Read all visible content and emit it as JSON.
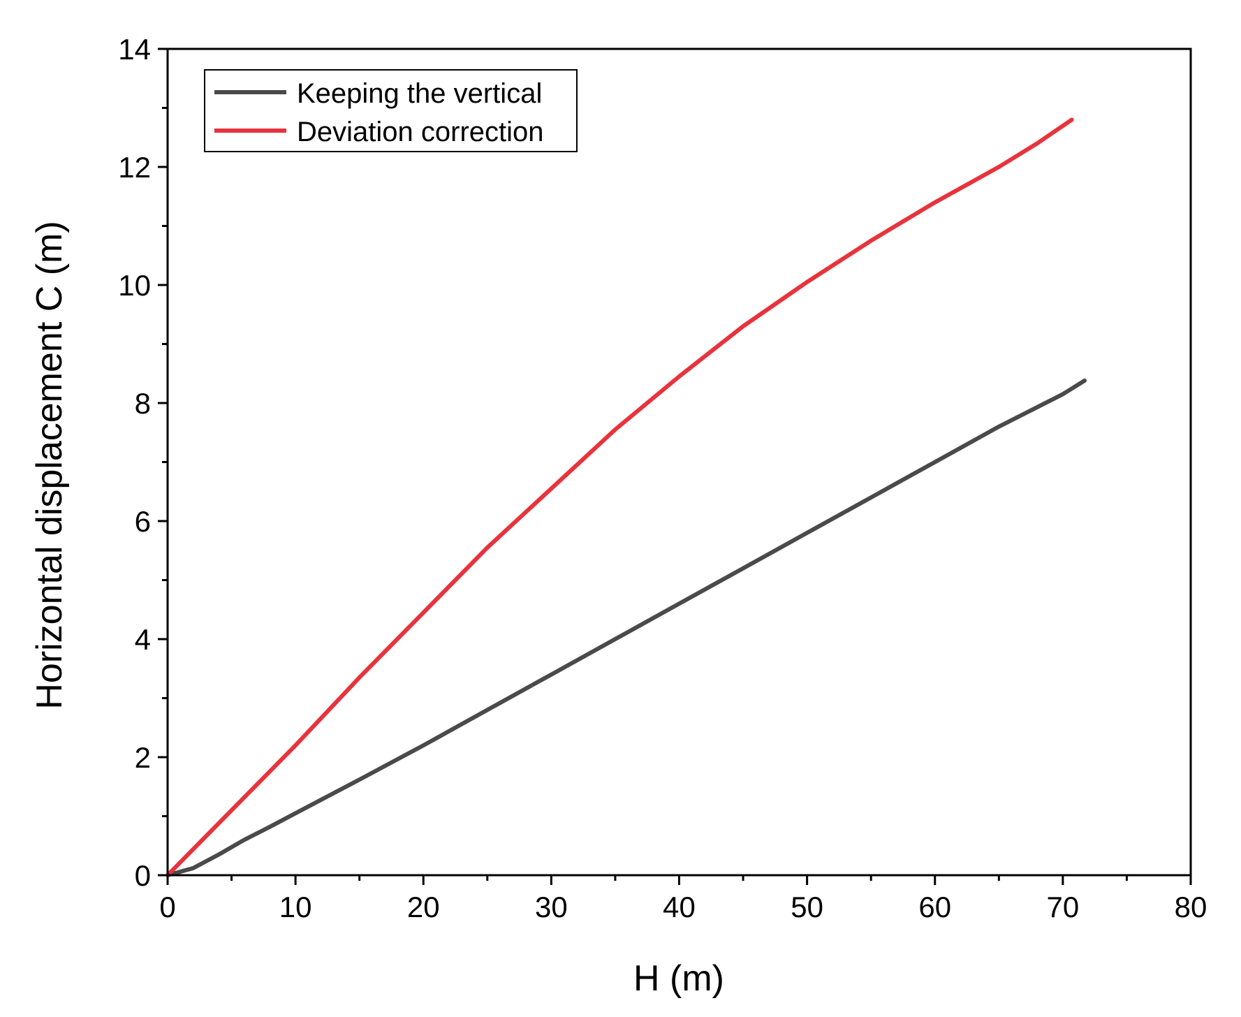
{
  "chart_data": {
    "type": "line",
    "xlabel": "H (m)",
    "ylabel": "Horizontal displacement C (m)",
    "xlim": [
      0,
      80
    ],
    "ylim": [
      0,
      14
    ],
    "xticks": [
      0,
      10,
      20,
      30,
      40,
      50,
      60,
      70,
      80
    ],
    "yticks": [
      0,
      2,
      4,
      6,
      8,
      10,
      12,
      14
    ],
    "grid": false,
    "legend_position": "top-left",
    "series": [
      {
        "name": "Keeping the vertical",
        "color": "#4a4a4a",
        "points": [
          [
            0,
            0
          ],
          [
            2,
            0.12
          ],
          [
            4,
            0.35
          ],
          [
            6,
            0.6
          ],
          [
            8,
            0.82
          ],
          [
            10,
            1.05
          ],
          [
            15,
            1.62
          ],
          [
            20,
            2.2
          ],
          [
            25,
            2.8
          ],
          [
            30,
            3.4
          ],
          [
            35,
            4.0
          ],
          [
            40,
            4.6
          ],
          [
            45,
            5.2
          ],
          [
            50,
            5.8
          ],
          [
            55,
            6.4
          ],
          [
            60,
            7.0
          ],
          [
            65,
            7.6
          ],
          [
            70,
            8.15
          ],
          [
            71.7,
            8.38
          ]
        ]
      },
      {
        "name": "Deviation correction",
        "color": "#e8333c",
        "points": [
          [
            0,
            0
          ],
          [
            2.5,
            0.55
          ],
          [
            5,
            1.1
          ],
          [
            7.5,
            1.65
          ],
          [
            10,
            2.2
          ],
          [
            15,
            3.35
          ],
          [
            20,
            4.45
          ],
          [
            25,
            5.55
          ],
          [
            30,
            6.55
          ],
          [
            35,
            7.55
          ],
          [
            40,
            8.45
          ],
          [
            45,
            9.3
          ],
          [
            50,
            10.05
          ],
          [
            55,
            10.75
          ],
          [
            60,
            11.4
          ],
          [
            65,
            12.0
          ],
          [
            68,
            12.4
          ],
          [
            70.7,
            12.8
          ]
        ]
      }
    ]
  }
}
